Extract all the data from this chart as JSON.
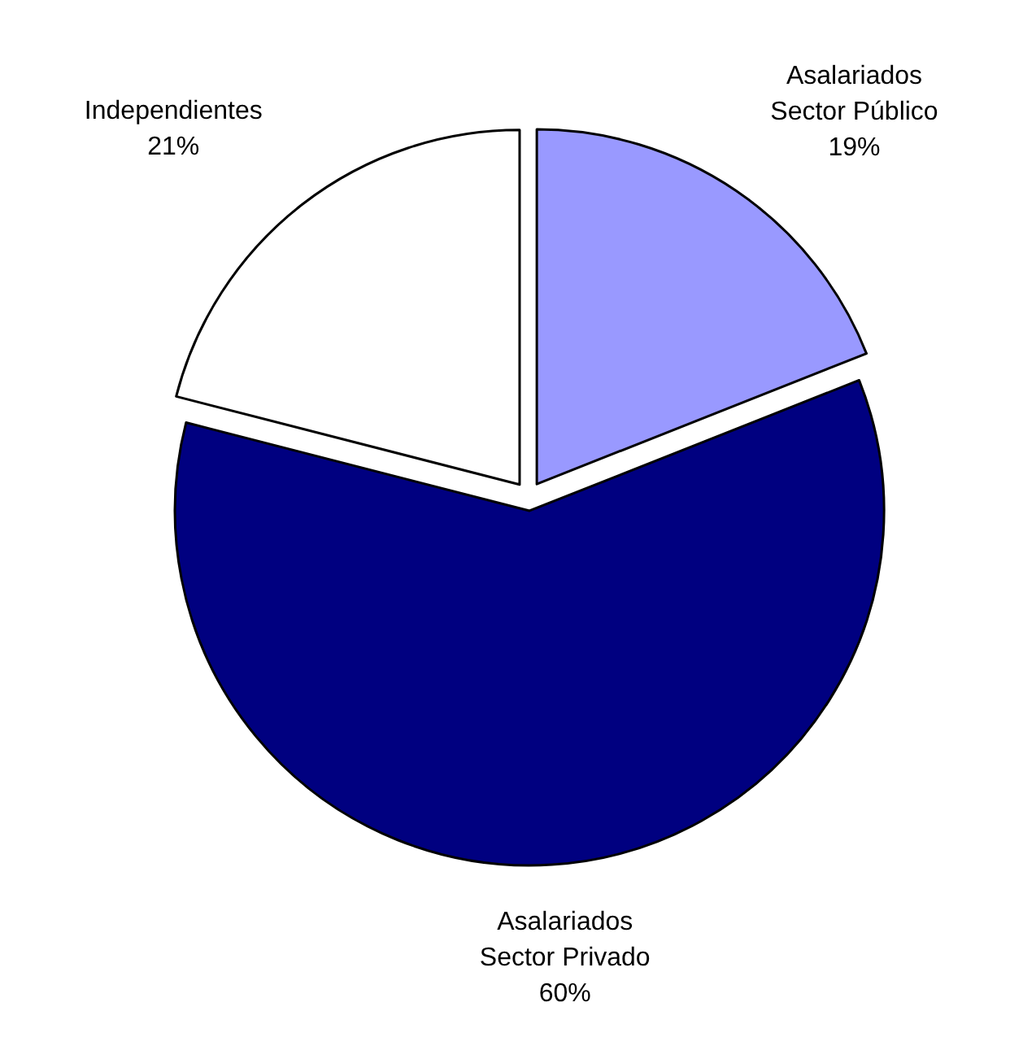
{
  "chart_data": {
    "type": "pie",
    "categories": [
      "Asalariados\nSector Público",
      "Asalariados\nSector Privado",
      "Independientes"
    ],
    "values": [
      19,
      60,
      21
    ],
    "colors": [
      "#9999ff",
      "#000080",
      "#ffffff"
    ],
    "value_labels": [
      "19%",
      "60%",
      "21%"
    ]
  }
}
